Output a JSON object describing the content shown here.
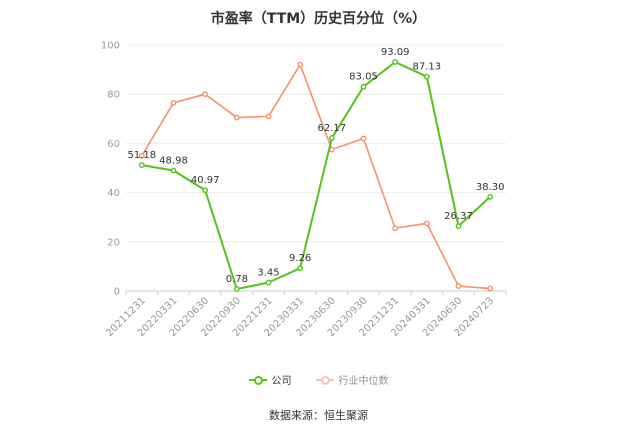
{
  "chart_data": {
    "type": "line",
    "title": "市盈率（TTM）历史百分位（%）",
    "categories": [
      "20211231",
      "20220331",
      "20220630",
      "20220930",
      "20221231",
      "20230331",
      "20230630",
      "20230930",
      "20231231",
      "20240331",
      "20240630",
      "20240723"
    ],
    "series": [
      {
        "name": "公司",
        "color": "#52c41a",
        "values": [
          51.18,
          48.98,
          40.97,
          0.78,
          3.45,
          9.26,
          62.17,
          83.05,
          93.09,
          87.13,
          26.37,
          38.3
        ],
        "labels": [
          "51.18",
          "48.98",
          "40.97",
          "0.78",
          "3.45",
          "9.26",
          "62.17",
          "83.05",
          "93.09",
          "87.13",
          "26.37",
          "38.30"
        ]
      },
      {
        "name": "行业中位数",
        "color": "#f0956a",
        "values": [
          55,
          76.5,
          80,
          70.5,
          71,
          92,
          57.5,
          62,
          25.5,
          27.5,
          2,
          1
        ]
      }
    ],
    "ylim": [
      0,
      100
    ],
    "yticks": [
      0,
      20,
      40,
      60,
      80,
      100
    ],
    "legend": "bottom",
    "grid": true
  },
  "source": "数据来源：恒生聚源"
}
